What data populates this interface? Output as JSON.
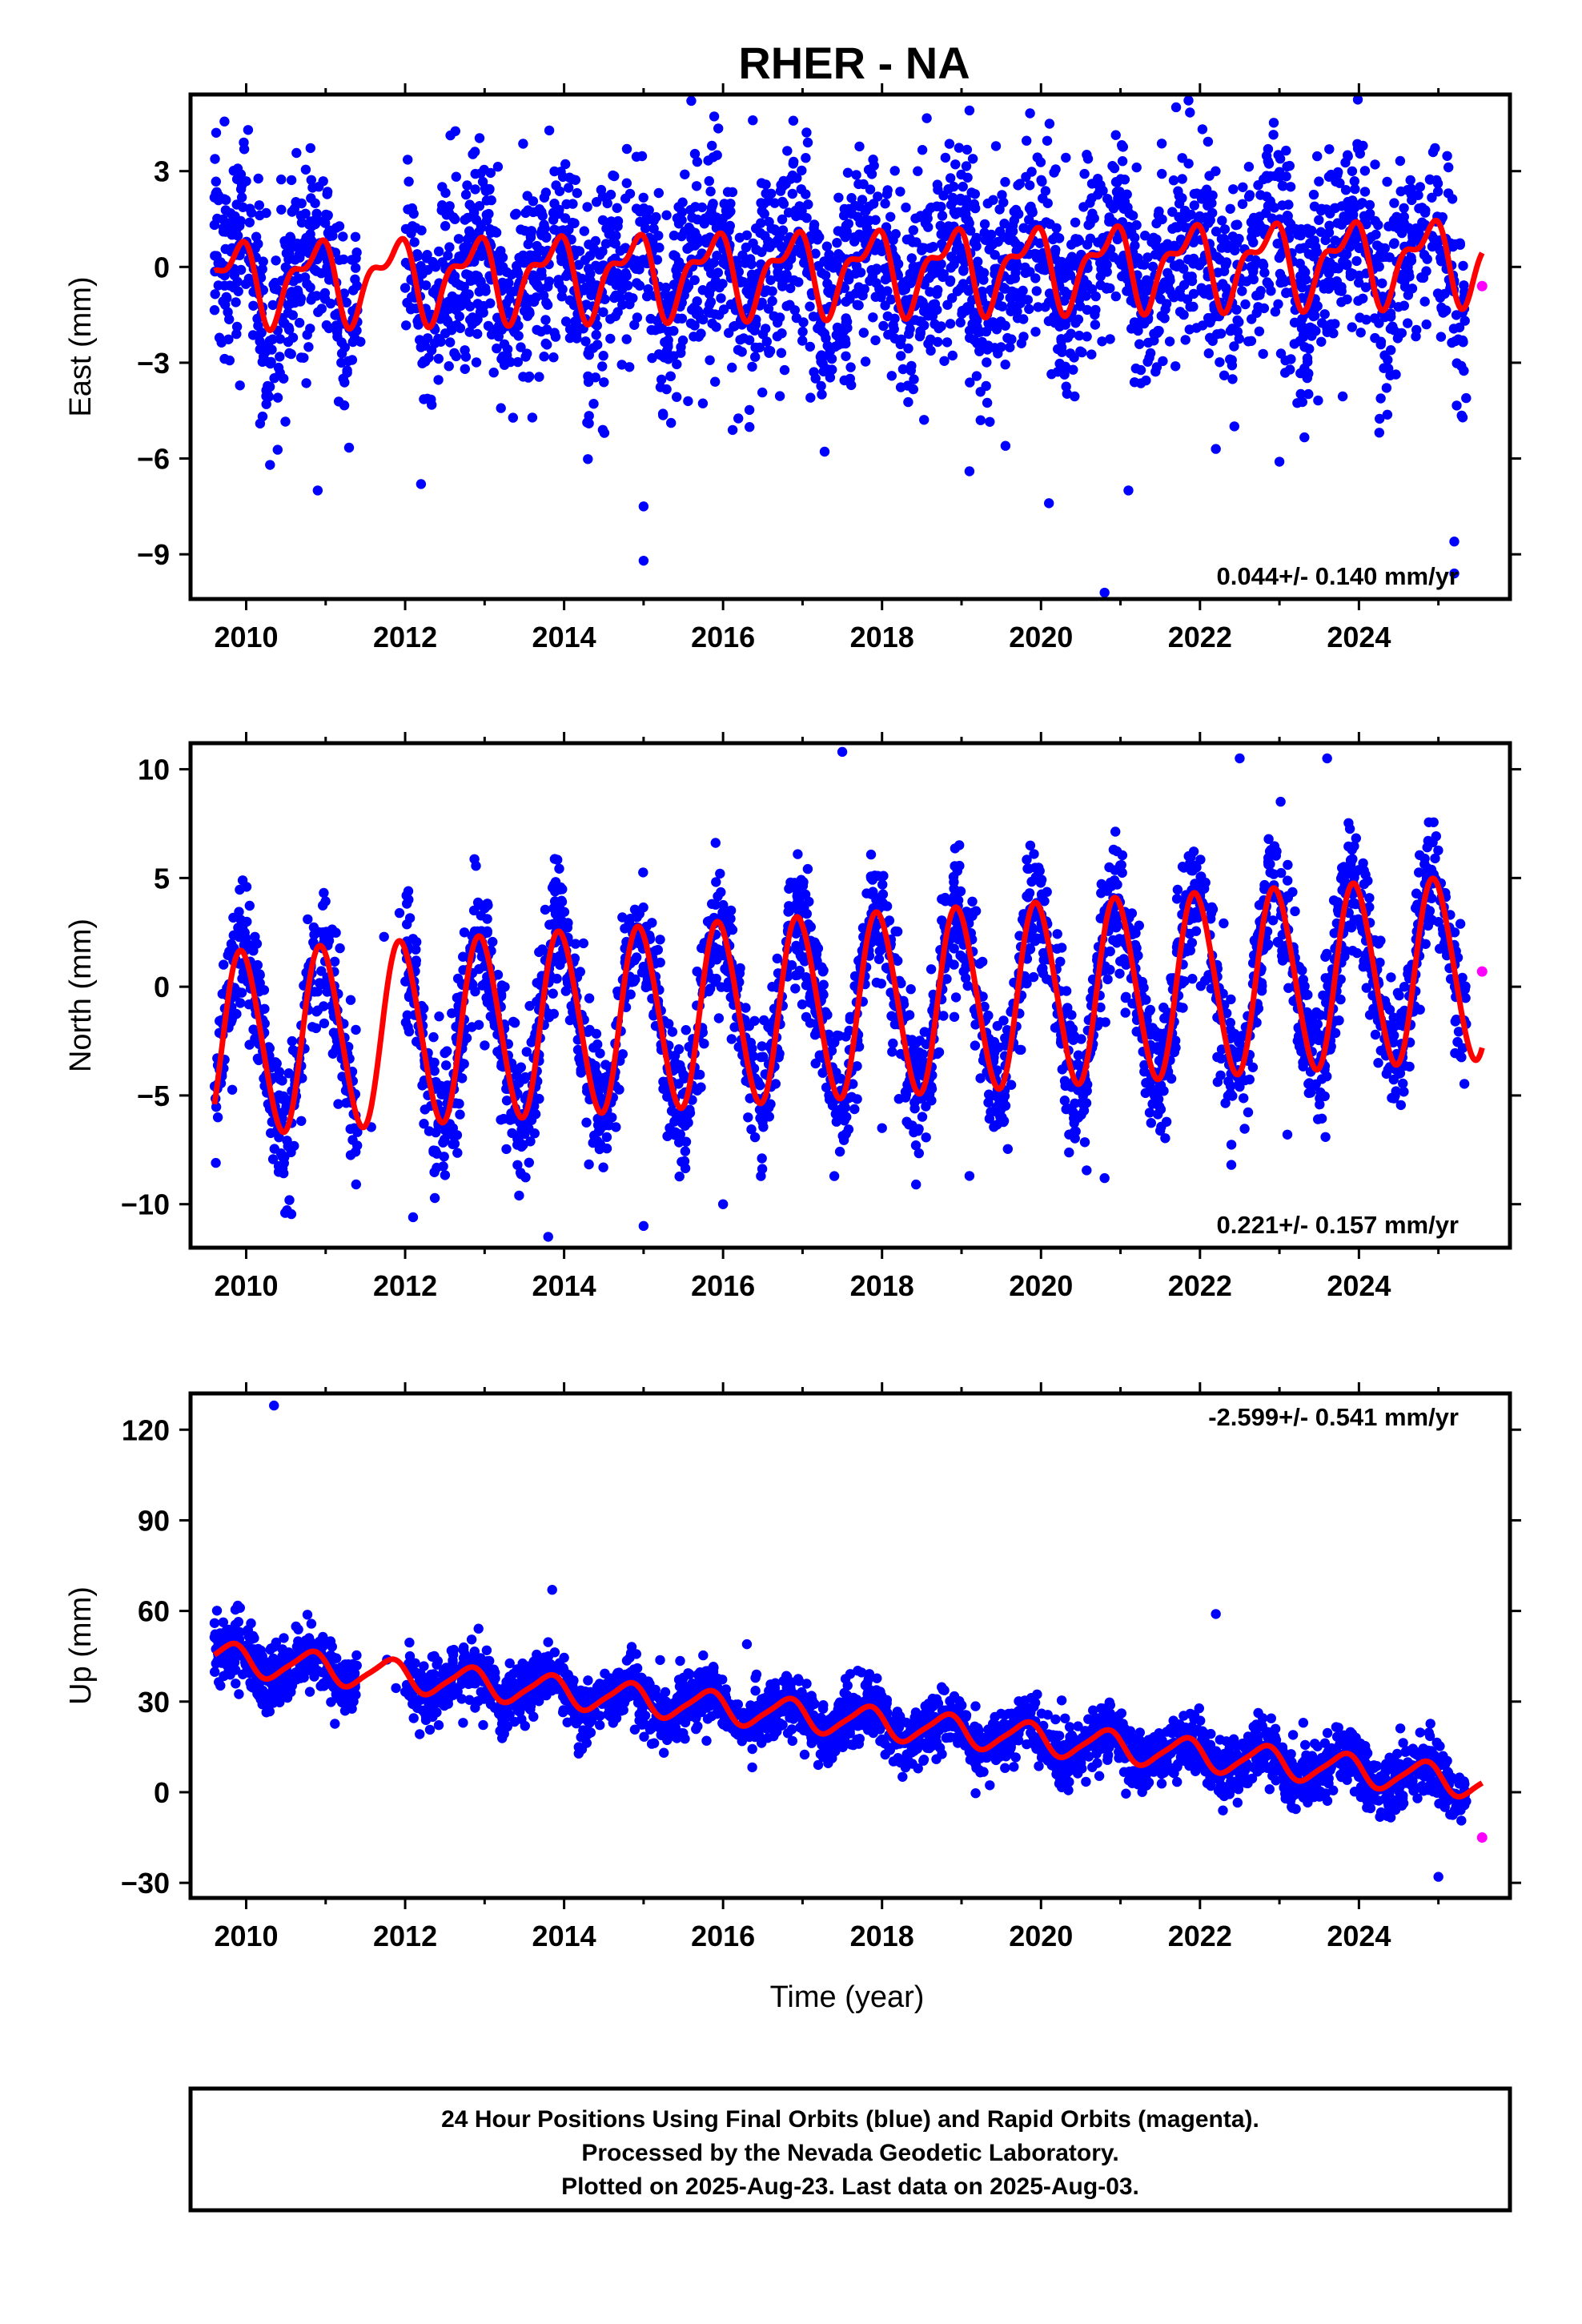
{
  "title": "RHER - NA",
  "colors": {
    "final": "#0000ff",
    "rapid": "#ff00ff",
    "model": "#ff0000",
    "frame": "#000000"
  },
  "chart_data": [
    {
      "type": "scatter",
      "ylabel": "East (mm)",
      "xlim": [
        2009.3,
        2025.9
      ],
      "ylim": [
        -10.4,
        5.4
      ],
      "xticks": [
        2010,
        2012,
        2014,
        2016,
        2018,
        2020,
        2022,
        2024
      ],
      "yticks": [
        3,
        0,
        -3,
        -6,
        -9
      ],
      "ytick_labels": [
        "3",
        "0",
        "−3",
        "−6",
        "−9"
      ],
      "rate_label": "0.044+/- 0.140 mm/yr",
      "data_span": [
        2009.6,
        2025.35
      ],
      "gap": [
        2011.4,
        2012.0
      ],
      "model": {
        "offset": -0.1,
        "trend": 0.044,
        "ann_amp": 1.1,
        "ann_phase": 0.6,
        "semi_amp": 0.55,
        "semi_phase": 0.4
      },
      "scatter_sigma": 1.6,
      "rapid_point": [
        2025.55,
        -0.6
      ],
      "outliers": [
        [
          2010.3,
          -6.2
        ],
        [
          2010.9,
          -7.0
        ],
        [
          2012.2,
          -6.8
        ],
        [
          2015.0,
          -7.5
        ],
        [
          2015.0,
          -9.2
        ],
        [
          2015.6,
          5.2
        ],
        [
          2019.1,
          4.9
        ],
        [
          2019.1,
          -6.4
        ],
        [
          2020.1,
          -7.4
        ],
        [
          2020.8,
          -10.2
        ],
        [
          2021.1,
          -7.0
        ],
        [
          2021.7,
          5.0
        ],
        [
          2022.2,
          -5.7
        ],
        [
          2023.0,
          -6.1
        ],
        [
          2025.2,
          -9.6
        ],
        [
          2025.2,
          -8.6
        ]
      ]
    },
    {
      "type": "scatter",
      "ylabel": "North (mm)",
      "xlim": [
        2009.3,
        2025.9
      ],
      "ylim": [
        -12.0,
        11.2
      ],
      "xticks": [
        2010,
        2012,
        2014,
        2016,
        2018,
        2020,
        2022,
        2024
      ],
      "yticks": [
        10,
        5,
        0,
        -5,
        -10
      ],
      "ytick_labels": [
        "10",
        "5",
        "0",
        "−5",
        "−10"
      ],
      "rate_label": "0.221+/- 0.157 mm/yr",
      "data_span": [
        2009.6,
        2025.35
      ],
      "gap": [
        2011.4,
        2012.0
      ],
      "model": {
        "offset": -0.9,
        "trend": 0.221,
        "ann_amp": 4.2,
        "ann_phase": 0.7,
        "semi_amp": 0.3,
        "semi_phase": 0.2
      },
      "scatter_sigma": 1.5,
      "rapid_point": [
        2025.55,
        0.7
      ],
      "outliers": [
        [
          2012.1,
          -10.6
        ],
        [
          2013.8,
          -11.5
        ],
        [
          2015.0,
          -11.0
        ],
        [
          2016.0,
          -10.0
        ],
        [
          2017.5,
          10.8
        ],
        [
          2018.0,
          -6.5
        ],
        [
          2019.1,
          -8.7
        ],
        [
          2020.8,
          -8.8
        ],
        [
          2022.5,
          10.5
        ],
        [
          2023.1,
          -6.8
        ],
        [
          2023.6,
          10.5
        ]
      ]
    },
    {
      "type": "scatter",
      "ylabel": "Up (mm)",
      "xlabel": "Time (year)",
      "xlim": [
        2009.3,
        2025.9
      ],
      "ylim": [
        -35,
        132
      ],
      "xticks": [
        2010,
        2012,
        2014,
        2016,
        2018,
        2020,
        2022,
        2024
      ],
      "yticks": [
        120,
        90,
        60,
        30,
        0,
        -30
      ],
      "ytick_labels": [
        "120",
        "90",
        "60",
        "30",
        "0",
        "−30"
      ],
      "rate_label": "-2.599+/- 0.541 mm/yr",
      "data_span": [
        2009.6,
        2025.35
      ],
      "gap": [
        2011.4,
        2012.0
      ],
      "model": {
        "offset": 24.0,
        "trend": -2.599,
        "ann_amp": 5.0,
        "ann_phase": 0.55,
        "semi_amp": 1.0,
        "semi_phase": 0.3
      },
      "scatter_sigma": 5.0,
      "rapid_point": [
        2025.55,
        -15.0
      ],
      "outliers": [
        [
          2010.35,
          128
        ],
        [
          2010.1,
          51
        ],
        [
          2010.5,
          39
        ],
        [
          2013.85,
          67
        ],
        [
          2013.8,
          43
        ],
        [
          2014.3,
          37
        ],
        [
          2016.3,
          49
        ],
        [
          2016.0,
          32
        ],
        [
          2016.9,
          25
        ],
        [
          2022.2,
          59
        ],
        [
          2023.3,
          23
        ],
        [
          2025.0,
          -28
        ]
      ]
    }
  ],
  "footer": {
    "line1": "24 Hour Positions Using Final Orbits (blue) and Rapid Orbits (magenta).",
    "line2": "Processed by the Nevada Geodetic Laboratory.",
    "line3": "Plotted on 2025-Aug-23. Last data on 2025-Aug-03."
  }
}
